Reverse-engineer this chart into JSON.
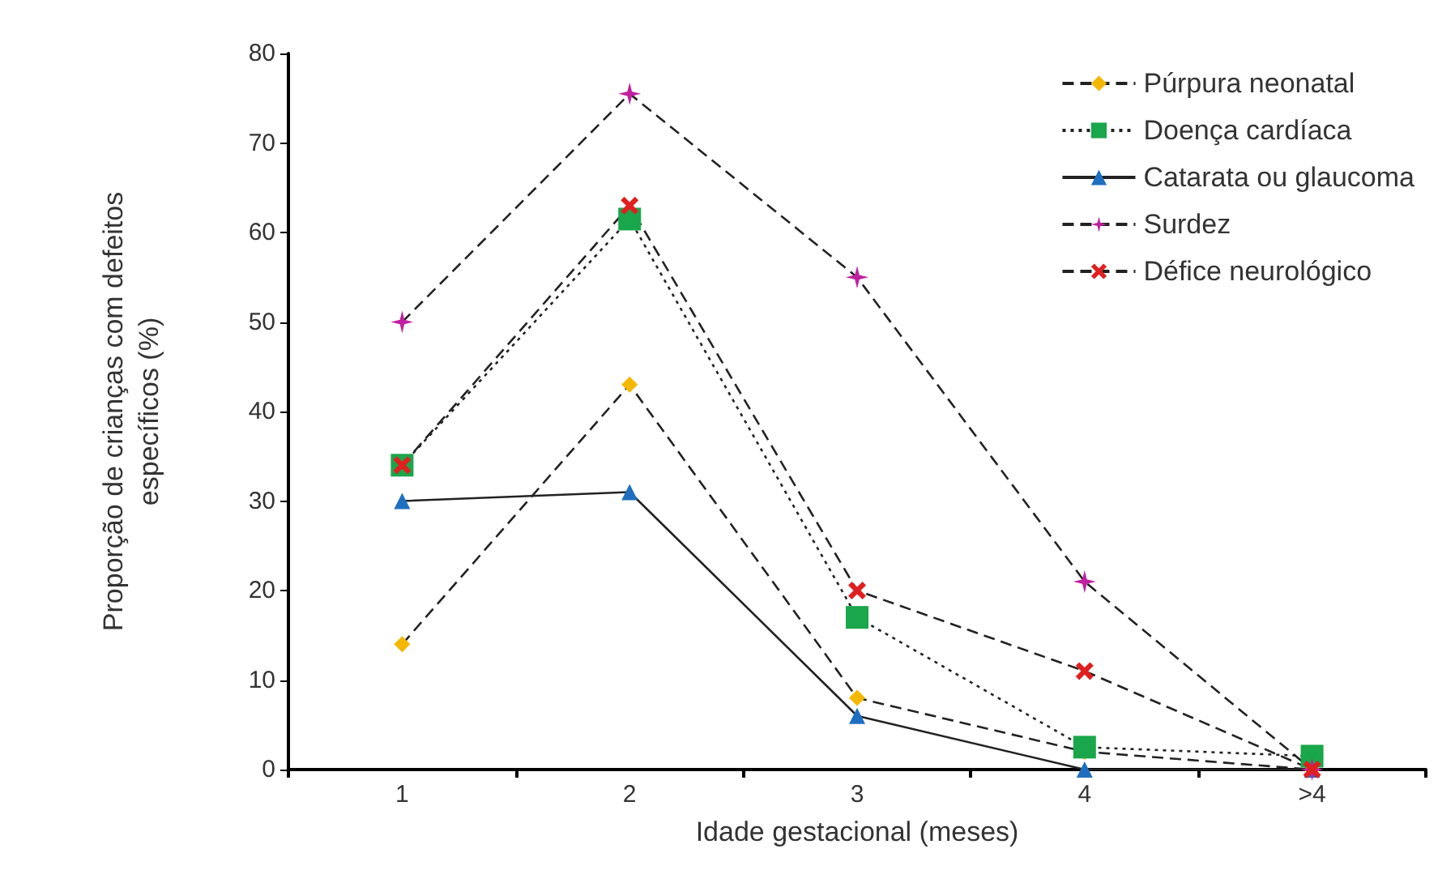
{
  "chart_data": {
    "type": "line",
    "xlabel": "Idade gestacional (meses)",
    "ylabel": "Proporção de crianças com defeitos\nespecíficos (%)",
    "categories": [
      "1",
      "2",
      "3",
      "4",
      ">4"
    ],
    "series": [
      {
        "name": "Púrpura neonatal",
        "color": "#f5b800",
        "marker": "diamond",
        "line_style": "dashed",
        "values": [
          14,
          43,
          8,
          2,
          0
        ]
      },
      {
        "name": "Doença cardíaca",
        "color": "#1aa64a",
        "marker": "square",
        "line_style": "dotted",
        "values": [
          34,
          61.5,
          17,
          2.5,
          1.5
        ]
      },
      {
        "name": "Catarata ou glaucoma",
        "color": "#1f6fc0",
        "marker": "triangle",
        "line_style": "solid",
        "values": [
          30,
          31,
          6,
          0,
          0
        ]
      },
      {
        "name": "Surdez",
        "color": "#c0209f",
        "marker": "star",
        "line_style": "dashed",
        "values": [
          50,
          75.5,
          55,
          21,
          0
        ]
      },
      {
        "name": "Défice neurológico",
        "color": "#e01f1f",
        "marker": "cross",
        "line_style": "dashed",
        "values": [
          34,
          63,
          20,
          11,
          0
        ]
      }
    ],
    "ylim": [
      0,
      80
    ],
    "yticks": [
      0,
      10,
      20,
      30,
      40,
      50,
      60,
      70,
      80
    ],
    "grid": false,
    "legend": "top right"
  }
}
